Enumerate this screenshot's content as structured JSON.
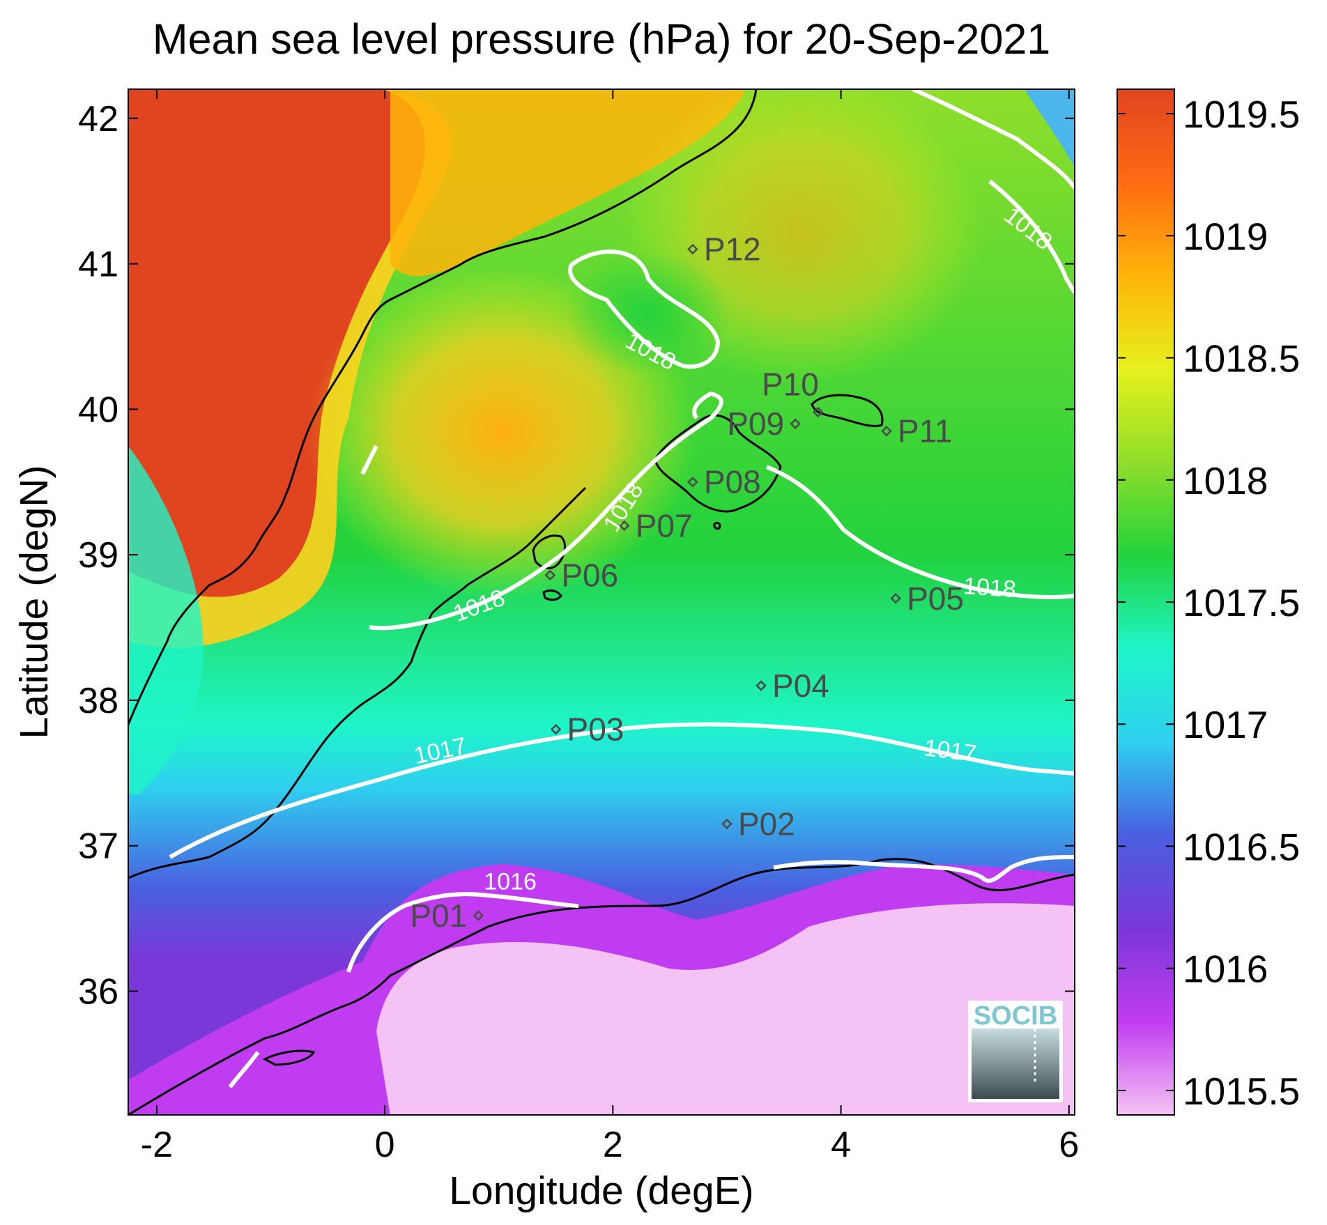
{
  "figure": {
    "title": "Mean sea level pressure (hPa) for 20-Sep-2021",
    "xlabel": "Longitude (degE)",
    "ylabel": "Latitude (degN)"
  },
  "map": {
    "lon_range": [
      -2.25,
      6.05
    ],
    "lat_range": [
      35.15,
      42.2
    ],
    "x_ticks": [
      -2,
      0,
      2,
      4,
      6
    ],
    "x_tick_labels": [
      "-2",
      "0",
      "2",
      "4",
      "6"
    ],
    "y_ticks": [
      36,
      37,
      38,
      39,
      40,
      41,
      42
    ],
    "y_tick_labels": [
      "36",
      "37",
      "38",
      "39",
      "40",
      "41",
      "42"
    ],
    "coastline_color": "#000000",
    "contour_color": "#ffffff",
    "contour_labels": [
      {
        "text": "1018",
        "lon": 5.6,
        "lat": 41.2,
        "angle": 38
      },
      {
        "text": "1018",
        "lon": 2.3,
        "lat": 40.35,
        "angle": 28
      },
      {
        "text": "1018",
        "lon": 2.15,
        "lat": 39.3,
        "angle": -58
      },
      {
        "text": "1018",
        "lon": 0.85,
        "lat": 38.6,
        "angle": -20
      },
      {
        "text": "1018",
        "lon": 5.3,
        "lat": 38.72,
        "angle": 4
      },
      {
        "text": "1017",
        "lon": 0.5,
        "lat": 37.6,
        "angle": -12
      },
      {
        "text": "1017",
        "lon": 4.95,
        "lat": 37.6,
        "angle": 7
      },
      {
        "text": "1016",
        "lon": 1.1,
        "lat": 36.7,
        "angle": 0
      }
    ],
    "points": [
      {
        "label": "P01",
        "lon": 0.82,
        "lat": 36.52,
        "label_side": "left"
      },
      {
        "label": "P02",
        "lon": 3.0,
        "lat": 37.15,
        "label_side": "right"
      },
      {
        "label": "P03",
        "lon": 1.5,
        "lat": 37.8,
        "label_side": "right"
      },
      {
        "label": "P04",
        "lon": 3.3,
        "lat": 38.1,
        "label_side": "right"
      },
      {
        "label": "P05",
        "lon": 4.48,
        "lat": 38.7,
        "label_side": "right"
      },
      {
        "label": "P06",
        "lon": 1.45,
        "lat": 38.86,
        "label_side": "right"
      },
      {
        "label": "P07",
        "lon": 2.1,
        "lat": 39.2,
        "label_side": "right"
      },
      {
        "label": "P08",
        "lon": 2.7,
        "lat": 39.5,
        "label_side": "right"
      },
      {
        "label": "P09",
        "lon": 3.6,
        "lat": 39.9,
        "label_side": "left"
      },
      {
        "label": "P10",
        "lon": 3.8,
        "lat": 39.98,
        "label_side": "above"
      },
      {
        "label": "P11",
        "lon": 4.4,
        "lat": 39.85,
        "label_side": "right"
      },
      {
        "label": "P12",
        "lon": 2.7,
        "lat": 41.1,
        "label_side": "right"
      }
    ],
    "logo_text": "SOCIB"
  },
  "colorbar": {
    "range": [
      1015.4,
      1019.6
    ],
    "ticks": [
      1015.5,
      1016,
      1016.5,
      1017,
      1017.5,
      1018,
      1018.5,
      1019,
      1019.5
    ],
    "tick_labels": [
      "1015.5",
      "1016",
      "1016.5",
      "1017",
      "1017.5",
      "1018",
      "1018.5",
      "1019",
      "1019.5"
    ],
    "colors": [
      "#f4c2f4",
      "#c03cf0",
      "#7a38d8",
      "#4a5fe0",
      "#2fd0ef",
      "#1ef5c8",
      "#22d23c",
      "#8fde2a",
      "#e6f01c",
      "#ffb40a",
      "#ff6b12",
      "#e0451f"
    ]
  },
  "chart_data": {
    "type": "heatmap",
    "title": "Mean sea level pressure (hPa) for 20-Sep-2021",
    "xlabel": "Longitude (degE)",
    "ylabel": "Latitude (degN)",
    "xlim": [
      -2.25,
      6.05
    ],
    "ylim": [
      35.15,
      42.2
    ],
    "colorbar_range": [
      1015.4,
      1019.6
    ],
    "contour_levels": [
      1016,
      1017,
      1018
    ],
    "points": [
      "P01",
      "P02",
      "P03",
      "P04",
      "P05",
      "P06",
      "P07",
      "P08",
      "P09",
      "P10",
      "P11",
      "P12"
    ]
  }
}
